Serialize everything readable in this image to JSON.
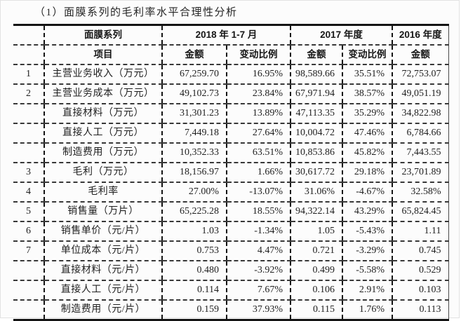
{
  "page": {
    "title": "（1）面膜系列的毛利率水平合理性分析"
  },
  "table": {
    "group_header": {
      "corner": "",
      "series": "面膜系列",
      "periods": [
        "2018 年 1-7 月",
        "2017 年度",
        "2016 年度"
      ]
    },
    "column_header": {
      "corner": "",
      "item": "项目",
      "cols": [
        "金额",
        "变动比例",
        "金额",
        "变动比例",
        "金额"
      ]
    },
    "rows": [
      {
        "no": "1",
        "item": "主营业务收入（万元）",
        "values": [
          "67,259.70",
          "16.95%",
          "98,589.66",
          "35.51%",
          "72,753.07"
        ]
      },
      {
        "no": "2",
        "item": "主营业务成本（万元）",
        "values": [
          "49,102.73",
          "23.84%",
          "67,971.94",
          "38.57%",
          "49,051.19"
        ]
      },
      {
        "no": "",
        "item": "直接材料（万元）",
        "values": [
          "31,301.23",
          "13.89%",
          "47,113.35",
          "35.29%",
          "34,822.98"
        ]
      },
      {
        "no": "",
        "item": "直接人工（万元）",
        "values": [
          "7,449.18",
          "27.64%",
          "10,004.72",
          "47.46%",
          "6,784.66"
        ]
      },
      {
        "no": "",
        "item": "制造费用（万元）",
        "values": [
          "10,352.33",
          "63.51%",
          "10,853.86",
          "45.82%",
          "7,443.55"
        ]
      },
      {
        "no": "3",
        "item": "毛利（万元）",
        "values": [
          "18,156.97",
          "1.66%",
          "30,617.72",
          "29.18%",
          "23,701.89"
        ]
      },
      {
        "no": "4",
        "item": "毛利率",
        "values": [
          "27.00%",
          "-13.07%",
          "31.06%",
          "-4.67%",
          "32.58%"
        ]
      },
      {
        "no": "5",
        "item": "销售量（万片）",
        "values": [
          "65,225.28",
          "18.55%",
          "94,322.14",
          "43.29%",
          "65,824.45"
        ]
      },
      {
        "no": "6",
        "item": "销售单价（元/片）",
        "values": [
          "1.03",
          "-1.34%",
          "1.05",
          "-5.43%",
          "1.11"
        ]
      },
      {
        "no": "7",
        "item": "单位成本（元/片）",
        "values": [
          "0.753",
          "4.47%",
          "0.721",
          "-3.29%",
          "0.745"
        ]
      },
      {
        "no": "",
        "item": "直接材料（元/片）",
        "values": [
          "0.480",
          "-3.92%",
          "0.499",
          "-5.58%",
          "0.529"
        ]
      },
      {
        "no": "",
        "item": "直接人工（元/片）",
        "values": [
          "0.114",
          "7.67%",
          "0.106",
          "2.91%",
          "0.103"
        ]
      },
      {
        "no": "",
        "item": "制造费用（元/片）",
        "values": [
          "0.159",
          "37.93%",
          "0.115",
          "1.76%",
          "0.113"
        ]
      }
    ]
  },
  "colors": {
    "border_dark": "#141414",
    "row_divider": "#383838",
    "text": "#1f1f1f",
    "background": "#fcfcfc"
  }
}
